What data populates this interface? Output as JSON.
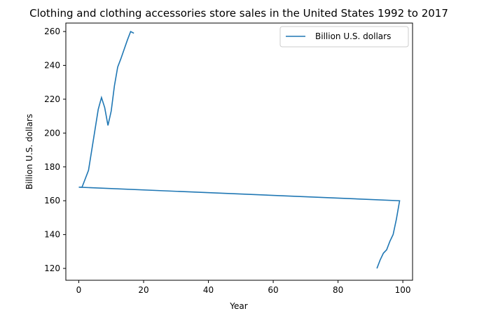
{
  "chart_data": {
    "type": "line",
    "title": "Clothing and clothing accessories store sales in the United States 1992 to 2017",
    "xlabel": "Year",
    "ylabel": "Billion U.S. dollars",
    "xlim": [
      -4,
      103
    ],
    "ylim": [
      113,
      265
    ],
    "xticks": [
      0,
      20,
      40,
      60,
      80,
      100
    ],
    "yticks": [
      120,
      140,
      160,
      180,
      200,
      220,
      240,
      260
    ],
    "grid": false,
    "legend_position": "top-right",
    "colors": {
      "series": "#1f77b4"
    },
    "series": [
      {
        "name": "Billion U.S. dollars",
        "x": [
          92,
          93,
          94,
          95,
          96,
          97,
          98,
          99,
          0,
          1,
          2,
          3,
          4,
          5,
          6,
          7,
          8,
          9,
          10,
          11,
          12,
          13,
          14,
          15,
          16,
          17
        ],
        "y": [
          120,
          125,
          129,
          131,
          136,
          140,
          149,
          160,
          168,
          168,
          173,
          178,
          190,
          202,
          214,
          221,
          215,
          204.5,
          213,
          228,
          239,
          244,
          249.5,
          255,
          260,
          259
        ]
      }
    ]
  }
}
